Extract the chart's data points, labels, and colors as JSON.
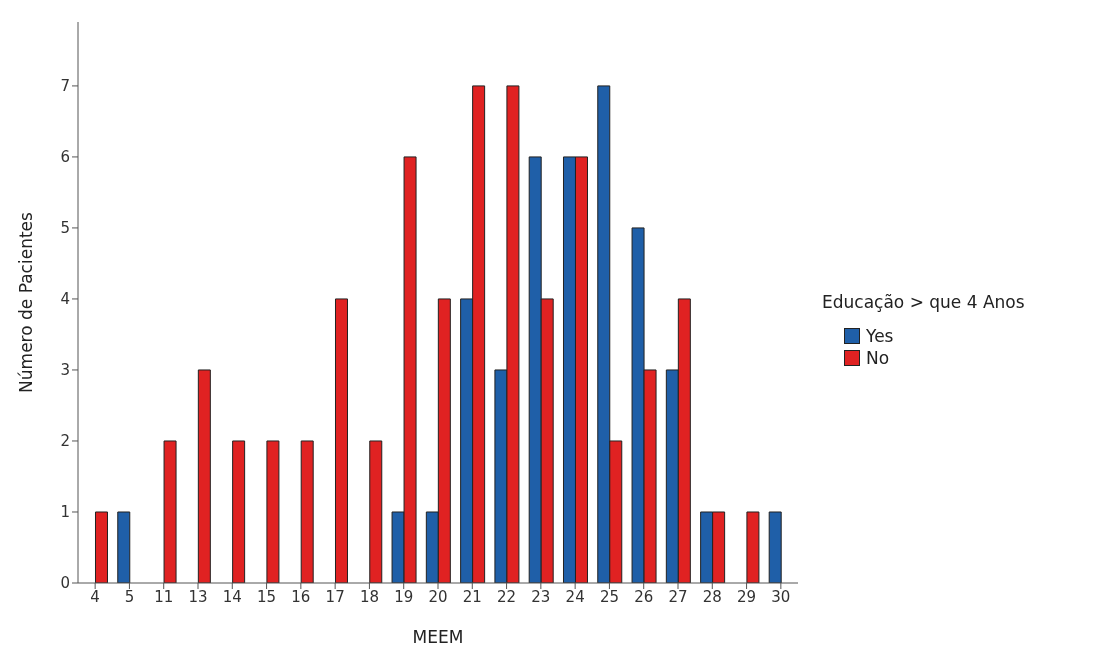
{
  "chart_data": {
    "type": "bar",
    "xlabel": "MEEM",
    "ylabel": "Número de Pacientes",
    "legend_title": "Educação > que 4 Anos",
    "legend": "right",
    "grid": false,
    "categories": [
      "4",
      "5",
      "11",
      "13",
      "14",
      "15",
      "16",
      "17",
      "18",
      "19",
      "20",
      "21",
      "22",
      "23",
      "24",
      "25",
      "26",
      "27",
      "28",
      "29",
      "30"
    ],
    "ylim": [
      0,
      7.9
    ],
    "yticks": [
      0,
      1,
      2,
      3,
      4,
      5,
      6,
      7
    ],
    "series": [
      {
        "name": "Yes",
        "color": "#1f5fa8",
        "values": [
          0,
          1,
          0,
          0,
          0,
          0,
          0,
          0,
          0,
          1,
          1,
          4,
          3,
          6,
          6,
          7,
          5,
          3,
          1,
          0,
          1
        ]
      },
      {
        "name": "No",
        "color": "#e02222",
        "values": [
          1,
          0,
          2,
          3,
          2,
          2,
          2,
          4,
          2,
          6,
          4,
          7,
          7,
          4,
          6,
          2,
          3,
          4,
          1,
          1,
          0
        ]
      }
    ]
  }
}
